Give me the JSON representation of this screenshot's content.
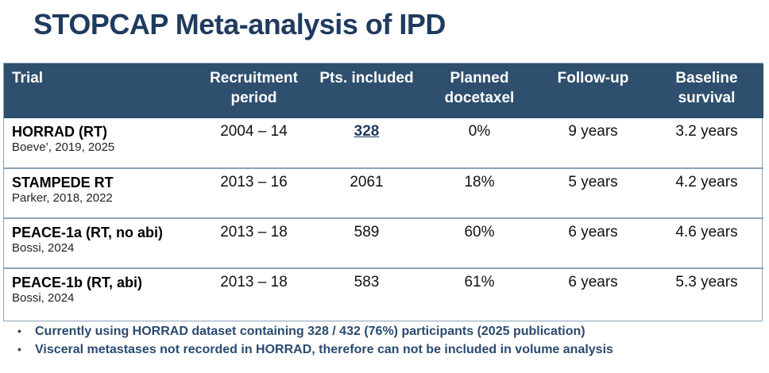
{
  "title": "STOPCAP Meta-analysis of IPD",
  "table": {
    "headers": {
      "trial": "Trial",
      "recruitment_1": "Recruitment",
      "recruitment_2": "period",
      "pts": "Pts. included",
      "docetaxel_1": "Planned",
      "docetaxel_2": "docetaxel",
      "followup": "Follow-up",
      "baseline_1": "Baseline",
      "baseline_2": "survival"
    },
    "rows": [
      {
        "name": "HORRAD (RT)",
        "ref": "Boeve’, 2019, 2025",
        "period": "2004 – 14",
        "pts": "328",
        "docetaxel": "0%",
        "followup": "9 years",
        "survival": "3.2 years"
      },
      {
        "name": "STAMPEDE RT",
        "ref": "Parker, 2018, 2022",
        "period": "2013 – 16",
        "pts": "2061",
        "docetaxel": "18%",
        "followup": "5 years",
        "survival": "4.2 years"
      },
      {
        "name": "PEACE-1a (RT, no abi)",
        "ref": "Bossi, 2024",
        "period": "2013 – 18",
        "pts": "589",
        "docetaxel": "60%",
        "followup": "6 years",
        "survival": "4.6 years"
      },
      {
        "name": "PEACE-1b (RT, abi)",
        "ref": "Bossi, 2024",
        "period": "2013 – 18",
        "pts": "583",
        "docetaxel": "61%",
        "followup": "6 years",
        "survival": "5.3 years"
      }
    ]
  },
  "notes": [
    "Currently using HORRAD dataset containing 328 / 432 (76%) participants (2025 publication)",
    "Visceral metastases not recorded in HORRAD, therefore can not be included in volume analysis"
  ],
  "bullet_glyph": "•",
  "colors": {
    "title": "#1f3b5f",
    "header_bg": "#2f4f6e",
    "border": "#8aa3b8",
    "notes": "#2a4a6e"
  }
}
